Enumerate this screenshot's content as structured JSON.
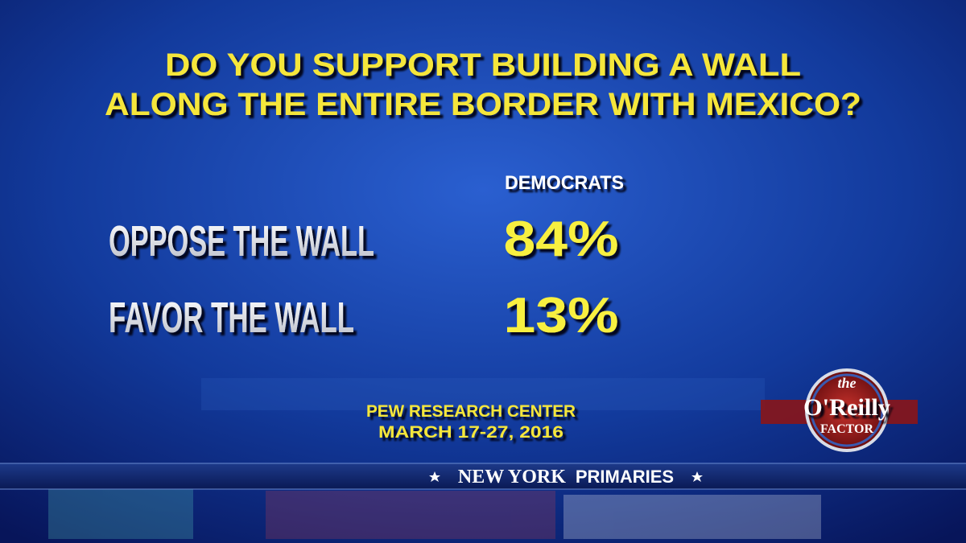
{
  "title": {
    "lines": [
      "DO YOU SUPPORT BUILDING A WALL",
      "ALONG THE ENTIRE BORDER WITH MEXICO?"
    ]
  },
  "table": {
    "column_header": "DEMOCRATS",
    "rows": [
      [
        "OPPOSE THE WALL",
        "84%"
      ],
      [
        "FAVOR THE WALL",
        "13%"
      ]
    ]
  },
  "source": {
    "lines": [
      "PEW RESEARCH CENTER",
      "MARCH 17-27, 2016"
    ]
  },
  "logo": {
    "lines": [
      "the",
      "O'Reilly",
      "FACTOR"
    ]
  },
  "banner": {
    "place": "NEW YORK",
    "event": "PRIMARIES"
  }
}
